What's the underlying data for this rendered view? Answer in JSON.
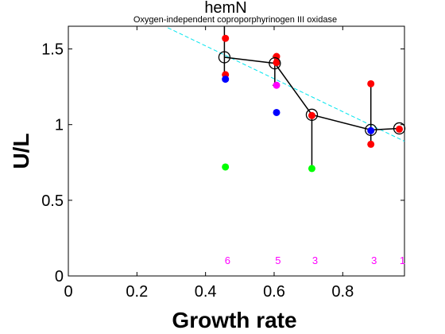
{
  "chart_data": {
    "type": "scatter",
    "title": "hemN",
    "subtitle": "Oxygen-independent coproporphyrinogen III oxidase",
    "xlabel": "Growth rate",
    "ylabel": "U/L",
    "xlim": [
      0,
      0.98
    ],
    "ylim": [
      0,
      1.65
    ],
    "xticks": [
      "0",
      "0.2",
      "0.4",
      "0.6",
      "0.8"
    ],
    "xtick_values": [
      0,
      0.2,
      0.4,
      0.6,
      0.8
    ],
    "yticks": [
      "0",
      "0.5",
      "1",
      "1.5"
    ],
    "ytick_values": [
      0,
      0.5,
      1,
      1.5
    ],
    "grid": false,
    "colors": {
      "red": "#ff0000",
      "blue": "#0000ff",
      "magenta": "#ff00ff",
      "green": "#00ff00",
      "mean_line": "#000000",
      "fit_line": "#00e5ee",
      "count_text": "#ff00ff"
    },
    "points": [
      {
        "x": 0.458,
        "y": 1.57,
        "color": "red"
      },
      {
        "x": 0.458,
        "y": 1.33,
        "color": "red"
      },
      {
        "x": 0.458,
        "y": 1.3,
        "color": "blue"
      },
      {
        "x": 0.458,
        "y": 0.72,
        "color": "green"
      },
      {
        "x": 0.607,
        "y": 1.45,
        "color": "red"
      },
      {
        "x": 0.607,
        "y": 1.41,
        "color": "red"
      },
      {
        "x": 0.607,
        "y": 1.26,
        "color": "magenta"
      },
      {
        "x": 0.607,
        "y": 1.08,
        "color": "blue"
      },
      {
        "x": 0.71,
        "y": 1.06,
        "color": "red"
      },
      {
        "x": 0.71,
        "y": 0.71,
        "color": "green"
      },
      {
        "x": 0.882,
        "y": 1.27,
        "color": "red"
      },
      {
        "x": 0.882,
        "y": 0.87,
        "color": "red"
      },
      {
        "x": 0.882,
        "y": 0.96,
        "color": "blue"
      },
      {
        "x": 0.965,
        "y": 0.97,
        "color": "red"
      }
    ],
    "means": [
      {
        "x": 0.455,
        "y": 1.445,
        "err_low": 1.33,
        "err_high": 1.65,
        "n": "6"
      },
      {
        "x": 0.602,
        "y": 1.405,
        "err_low": 1.26,
        "err_high": 1.45,
        "n": "5"
      },
      {
        "x": 0.71,
        "y": 1.065,
        "err_low": 0.71,
        "err_high": 1.06,
        "n": "3"
      },
      {
        "x": 0.882,
        "y": 0.965,
        "err_low": 0.87,
        "err_high": 1.27,
        "n": "3"
      },
      {
        "x": 0.965,
        "y": 0.975,
        "err_low": 0.975,
        "err_high": 0.975,
        "n": "1"
      }
    ],
    "fit_line": {
      "x": [
        0.29,
        0.98
      ],
      "y": [
        1.64,
        0.89
      ],
      "style": "dashed"
    },
    "count_y": 0.1
  }
}
